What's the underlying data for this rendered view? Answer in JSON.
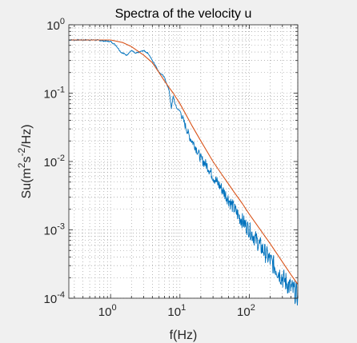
{
  "chart_data": {
    "type": "line",
    "title": "Spectra of the velocity u",
    "xlabel": "f(Hz)",
    "ylabel_parts": [
      "Su(m",
      "2",
      "s",
      "-2",
      "/Hz)"
    ],
    "xscale": "log",
    "yscale": "log",
    "xlim": [
      0.25,
      500
    ],
    "ylim": [
      0.0001,
      1
    ],
    "grid": "minor dotted",
    "x_ticks": [
      {
        "value": 1,
        "base": "10",
        "exp": "0"
      },
      {
        "value": 10,
        "base": "10",
        "exp": "1"
      },
      {
        "value": 100,
        "base": "10",
        "exp": "2"
      }
    ],
    "y_ticks": [
      {
        "value": 0.0001,
        "base": "10",
        "exp": "-4"
      },
      {
        "value": 0.001,
        "base": "10",
        "exp": "-3"
      },
      {
        "value": 0.01,
        "base": "10",
        "exp": "-2"
      },
      {
        "value": 0.1,
        "base": "10",
        "exp": "-1"
      },
      {
        "value": 1,
        "base": "10",
        "exp": "0"
      }
    ],
    "series": [
      {
        "color": "#0072BD",
        "style": "measured spectrum (noisy)",
        "x": [
          0.25,
          0.4,
          0.6,
          0.8,
          1.0,
          1.2,
          1.4,
          1.7,
          2.0,
          2.3,
          2.6,
          3.0,
          3.5,
          4.0,
          4.5,
          5.0,
          5.5,
          6.0,
          6.5,
          7.0,
          7.5,
          8.0,
          8.5,
          9.0,
          10,
          12,
          14,
          16,
          18,
          20,
          25,
          30,
          40,
          50,
          70,
          100,
          150,
          200,
          300,
          400,
          500
        ],
        "y": [
          0.6,
          0.6,
          0.6,
          0.58,
          0.57,
          0.5,
          0.4,
          0.36,
          0.42,
          0.38,
          0.4,
          0.42,
          0.38,
          0.3,
          0.25,
          0.2,
          0.19,
          0.17,
          0.13,
          0.11,
          0.06,
          0.09,
          0.07,
          0.06,
          0.055,
          0.033,
          0.022,
          0.018,
          0.014,
          0.011,
          0.0085,
          0.006,
          0.004,
          0.0028,
          0.0016,
          0.001,
          0.00055,
          0.00036,
          0.0002,
          0.00014,
          0.00011
        ]
      },
      {
        "color": "#D95319",
        "style": "fitted model",
        "x": [
          0.25,
          0.4,
          0.6,
          0.8,
          1.0,
          1.5,
          2.0,
          3.0,
          4.0,
          5.0,
          6.0,
          7.0,
          8.0,
          10,
          12,
          15,
          20,
          30,
          40,
          50,
          60,
          70,
          80,
          100,
          150,
          200,
          300,
          400,
          500
        ],
        "y": [
          0.6,
          0.6,
          0.6,
          0.6,
          0.6,
          0.55,
          0.48,
          0.36,
          0.28,
          0.2,
          0.15,
          0.12,
          0.1,
          0.07,
          0.05,
          0.033,
          0.02,
          0.01,
          0.0065,
          0.0047,
          0.0036,
          0.0029,
          0.0024,
          0.0017,
          0.00095,
          0.00063,
          0.00034,
          0.00022,
          0.00016
        ]
      }
    ]
  }
}
